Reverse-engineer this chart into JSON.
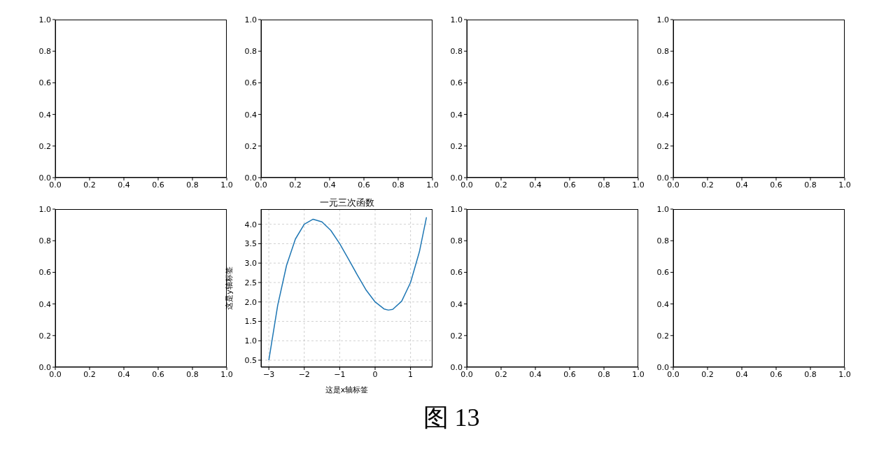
{
  "chart_data": [
    {
      "type": "line",
      "xlim": [
        0,
        1
      ],
      "ylim": [
        0,
        1
      ],
      "xticks": [
        {
          "value": 0,
          "label": "0.0"
        },
        {
          "value": 0.2,
          "label": "0.2"
        },
        {
          "value": 0.4,
          "label": "0.4"
        },
        {
          "value": 0.6,
          "label": "0.6"
        },
        {
          "value": 0.8,
          "label": "0.8"
        },
        {
          "value": 1,
          "label": "1.0"
        }
      ],
      "yticks": [
        {
          "value": 0,
          "label": "0.0"
        },
        {
          "value": 0.2,
          "label": "0.2"
        },
        {
          "value": 0.4,
          "label": "0.4"
        },
        {
          "value": 0.6,
          "label": "0.6"
        },
        {
          "value": 0.8,
          "label": "0.8"
        },
        {
          "value": 1,
          "label": "1.0"
        }
      ]
    },
    {
      "type": "line",
      "xlim": [
        0,
        1
      ],
      "ylim": [
        0,
        1
      ],
      "xticks": [
        {
          "value": 0,
          "label": "0.0"
        },
        {
          "value": 0.2,
          "label": "0.2"
        },
        {
          "value": 0.4,
          "label": "0.4"
        },
        {
          "value": 0.6,
          "label": "0.6"
        },
        {
          "value": 0.8,
          "label": "0.8"
        },
        {
          "value": 1,
          "label": "1.0"
        }
      ],
      "yticks": [
        {
          "value": 0,
          "label": "0.0"
        },
        {
          "value": 0.2,
          "label": "0.2"
        },
        {
          "value": 0.4,
          "label": "0.4"
        },
        {
          "value": 0.6,
          "label": "0.6"
        },
        {
          "value": 0.8,
          "label": "0.8"
        },
        {
          "value": 1,
          "label": "1.0"
        }
      ]
    },
    {
      "type": "line",
      "xlim": [
        0,
        1
      ],
      "ylim": [
        0,
        1
      ],
      "xticks": [
        {
          "value": 0,
          "label": "0.0"
        },
        {
          "value": 0.2,
          "label": "0.2"
        },
        {
          "value": 0.4,
          "label": "0.4"
        },
        {
          "value": 0.6,
          "label": "0.6"
        },
        {
          "value": 0.8,
          "label": "0.8"
        },
        {
          "value": 1,
          "label": "1.0"
        }
      ],
      "yticks": [
        {
          "value": 0,
          "label": "0.0"
        },
        {
          "value": 0.2,
          "label": "0.2"
        },
        {
          "value": 0.4,
          "label": "0.4"
        },
        {
          "value": 0.6,
          "label": "0.6"
        },
        {
          "value": 0.8,
          "label": "0.8"
        },
        {
          "value": 1,
          "label": "1.0"
        }
      ]
    },
    {
      "type": "line",
      "xlim": [
        0,
        1
      ],
      "ylim": [
        0,
        1
      ],
      "xticks": [
        {
          "value": 0,
          "label": "0.0"
        },
        {
          "value": 0.2,
          "label": "0.2"
        },
        {
          "value": 0.4,
          "label": "0.4"
        },
        {
          "value": 0.6,
          "label": "0.6"
        },
        {
          "value": 0.8,
          "label": "0.8"
        },
        {
          "value": 1,
          "label": "1.0"
        }
      ],
      "yticks": [
        {
          "value": 0,
          "label": "0.0"
        },
        {
          "value": 0.2,
          "label": "0.2"
        },
        {
          "value": 0.4,
          "label": "0.4"
        },
        {
          "value": 0.6,
          "label": "0.6"
        },
        {
          "value": 0.8,
          "label": "0.8"
        },
        {
          "value": 1,
          "label": "1.0"
        }
      ]
    },
    {
      "type": "line",
      "xlim": [
        0,
        1
      ],
      "ylim": [
        0,
        1
      ],
      "xticks": [
        {
          "value": 0,
          "label": "0.0"
        },
        {
          "value": 0.2,
          "label": "0.2"
        },
        {
          "value": 0.4,
          "label": "0.4"
        },
        {
          "value": 0.6,
          "label": "0.6"
        },
        {
          "value": 0.8,
          "label": "0.8"
        },
        {
          "value": 1,
          "label": "1.0"
        }
      ],
      "yticks": [
        {
          "value": 0,
          "label": "0.0"
        },
        {
          "value": 0.2,
          "label": "0.2"
        },
        {
          "value": 0.4,
          "label": "0.4"
        },
        {
          "value": 0.6,
          "label": "0.6"
        },
        {
          "value": 0.8,
          "label": "0.8"
        },
        {
          "value": 1,
          "label": "1.0"
        }
      ]
    },
    {
      "type": "line",
      "title": "一元三次函数",
      "xlabel": "这是x轴标签",
      "ylabel": "这是y轴标签",
      "annotations": [
        "图 13"
      ],
      "grid": true,
      "x": [
        -3,
        -2.75,
        -2.5,
        -2.25,
        -2,
        -1.75,
        -1.5,
        -1.25,
        -1,
        -0.75,
        -0.5,
        -0.25,
        0,
        0.25,
        0.375,
        0.5,
        0.75,
        1,
        1.25,
        1.45
      ],
      "series": [
        {
          "color": "#1f77b4",
          "values": [
            0.5,
            1.91,
            2.94,
            3.62,
            4.0,
            4.13,
            4.06,
            3.84,
            3.5,
            3.1,
            2.69,
            2.3,
            2.0,
            1.82,
            1.79,
            1.81,
            2.02,
            2.5,
            3.29,
            4.18
          ]
        }
      ],
      "xlim": [
        -3.22,
        1.62
      ],
      "ylim": [
        0.32,
        4.39
      ],
      "xticks": [
        {
          "value": -3,
          "label": "−3"
        },
        {
          "value": -2,
          "label": "−2"
        },
        {
          "value": -1,
          "label": "−1"
        },
        0,
        1
      ],
      "yticks": [
        {
          "value": 0.5,
          "label": "0.5"
        },
        {
          "value": 1,
          "label": "1.0"
        },
        {
          "value": 1.5,
          "label": "1.5"
        },
        {
          "value": 2,
          "label": "2.0"
        },
        {
          "value": 2.5,
          "label": "2.5"
        },
        {
          "value": 3,
          "label": "3.0"
        },
        {
          "value": 3.5,
          "label": "3.5"
        },
        {
          "value": 4,
          "label": "4.0"
        }
      ]
    },
    {
      "type": "line",
      "xlim": [
        0,
        1
      ],
      "ylim": [
        0,
        1
      ],
      "xticks": [
        {
          "value": 0,
          "label": "0.0"
        },
        {
          "value": 0.2,
          "label": "0.2"
        },
        {
          "value": 0.4,
          "label": "0.4"
        },
        {
          "value": 0.6,
          "label": "0.6"
        },
        {
          "value": 0.8,
          "label": "0.8"
        },
        {
          "value": 1,
          "label": "1.0"
        }
      ],
      "yticks": [
        {
          "value": 0,
          "label": "0.0"
        },
        {
          "value": 0.2,
          "label": "0.2"
        },
        {
          "value": 0.4,
          "label": "0.4"
        },
        {
          "value": 0.6,
          "label": "0.6"
        },
        {
          "value": 0.8,
          "label": "0.8"
        },
        {
          "value": 1,
          "label": "1.0"
        }
      ]
    },
    {
      "type": "line",
      "xlim": [
        0,
        1
      ],
      "ylim": [
        0,
        1
      ],
      "xticks": [
        {
          "value": 0,
          "label": "0.0"
        },
        {
          "value": 0.2,
          "label": "0.2"
        },
        {
          "value": 0.4,
          "label": "0.4"
        },
        {
          "value": 0.6,
          "label": "0.6"
        },
        {
          "value": 0.8,
          "label": "0.8"
        },
        {
          "value": 1,
          "label": "1.0"
        }
      ],
      "yticks": [
        {
          "value": 0,
          "label": "0.0"
        },
        {
          "value": 0.2,
          "label": "0.2"
        },
        {
          "value": 0.4,
          "label": "0.4"
        },
        {
          "value": 0.6,
          "label": "0.6"
        },
        {
          "value": 0.8,
          "label": "0.8"
        },
        {
          "value": 1,
          "label": "1.0"
        }
      ]
    }
  ]
}
